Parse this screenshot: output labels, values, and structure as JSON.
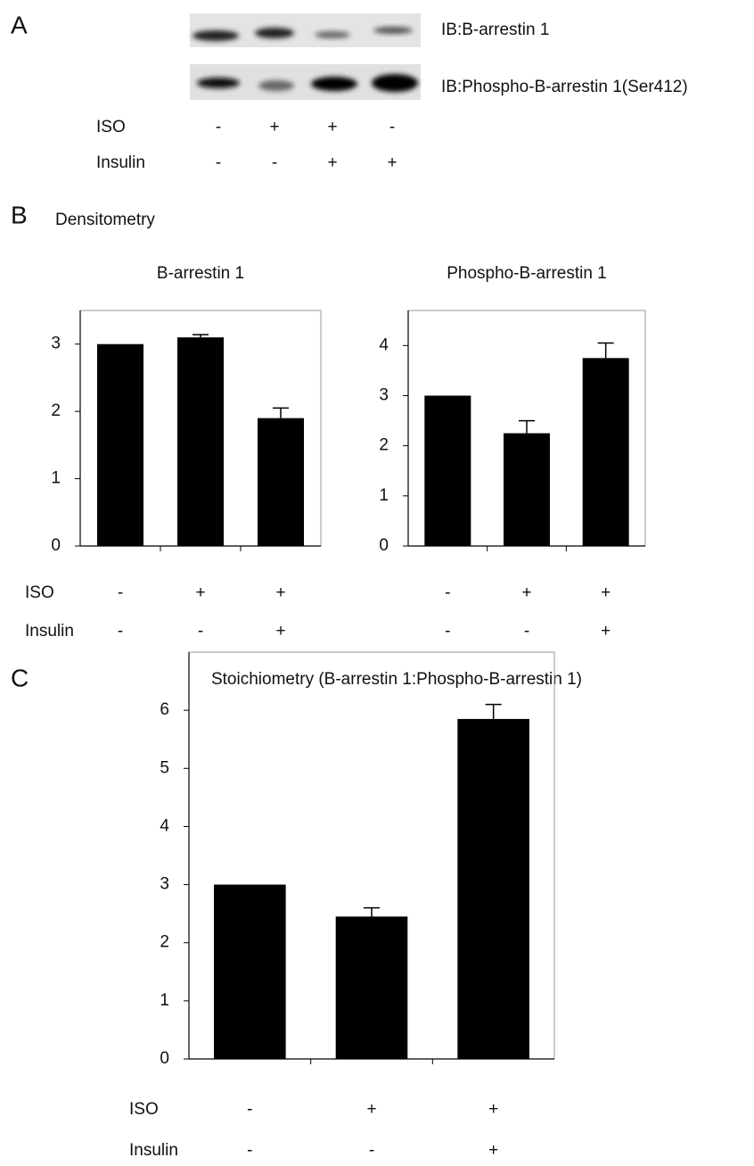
{
  "panels": {
    "a": "A",
    "b": "B",
    "c": "C"
  },
  "blot": {
    "labels": [
      "IB:B-arrestin 1",
      "IB:Phospho-B-arrestin 1(Ser412)"
    ],
    "treatments": [
      {
        "name": "ISO",
        "symbols": [
          "-",
          "+",
          "+",
          "-"
        ]
      },
      {
        "name": "Insulin",
        "symbols": [
          "-",
          "-",
          "+",
          "+"
        ]
      }
    ]
  },
  "section_b_title": "Densitometry",
  "chart_data": [
    {
      "type": "bar",
      "title": "B-arrestin 1",
      "values": [
        3.0,
        3.1,
        1.9
      ],
      "errors": [
        0,
        0.04,
        0.15
      ],
      "color": "#000000",
      "ylim": [
        0,
        3.5
      ],
      "yticks": [
        0,
        1,
        2,
        3
      ],
      "treatments": [
        {
          "name": "ISO",
          "symbols": [
            "-",
            "+",
            "+"
          ]
        },
        {
          "name": "Insulin",
          "symbols": [
            "-",
            "-",
            "+"
          ]
        }
      ]
    },
    {
      "type": "bar",
      "title": "Phospho-B-arrestin 1",
      "values": [
        3.0,
        2.25,
        3.75
      ],
      "errors": [
        0,
        0.25,
        0.3
      ],
      "color": "#000000",
      "ylim": [
        0,
        4.7
      ],
      "yticks": [
        0,
        1,
        2,
        3,
        4
      ],
      "treatments": [
        {
          "symbols": [
            "-",
            "+",
            "+"
          ]
        },
        {
          "symbols": [
            "-",
            "-",
            "+"
          ]
        }
      ]
    },
    {
      "type": "bar",
      "title": "Stoichiometry (B-arrestin 1:Phospho-B-arrestin 1)",
      "values": [
        3.0,
        2.45,
        5.85
      ],
      "errors": [
        0,
        0.15,
        0.25
      ],
      "color": "#000000",
      "ylim": [
        0,
        7
      ],
      "yticks": [
        0,
        1,
        2,
        3,
        4,
        5,
        6
      ],
      "treatments": [
        {
          "name": "ISO",
          "symbols": [
            "-",
            "+",
            "+"
          ]
        },
        {
          "name": "Insulin",
          "symbols": [
            "-",
            "-",
            "+"
          ]
        }
      ]
    }
  ]
}
